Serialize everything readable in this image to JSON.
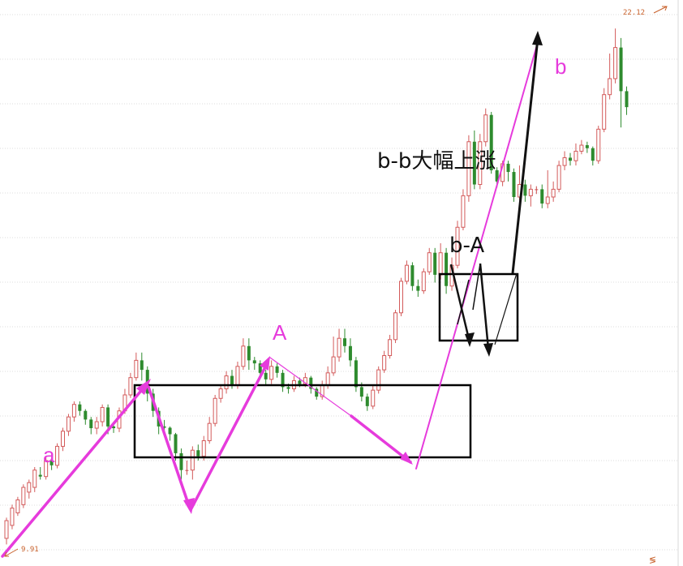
{
  "chart_data": {
    "type": "candlestick",
    "price_range": [
      9.5,
      22.6
    ],
    "price_high": "22.12",
    "price_low": "9.91",
    "grid": "horizontal dotted",
    "candles": [
      [
        10.14,
        10.55,
        10.0,
        10.62
      ],
      [
        10.44,
        10.84,
        10.35,
        10.92
      ],
      [
        10.73,
        11.03,
        10.66,
        11.1
      ],
      [
        10.92,
        11.32,
        10.84,
        11.39
      ],
      [
        11.21,
        11.43,
        11.06,
        11.5
      ],
      [
        11.32,
        11.72,
        11.21,
        11.79
      ],
      [
        11.61,
        11.57,
        11.5,
        11.79
      ],
      [
        11.57,
        11.94,
        11.5,
        12.01
      ],
      [
        11.94,
        11.83,
        11.72,
        12.01
      ],
      [
        11.83,
        12.27,
        11.76,
        12.34
      ],
      [
        12.27,
        12.62,
        12.16,
        12.7
      ],
      [
        12.62,
        12.95,
        12.51,
        13.02
      ],
      [
        12.95,
        13.24,
        12.84,
        13.31
      ],
      [
        13.24,
        13.09,
        12.98,
        13.31
      ],
      [
        13.09,
        12.89,
        12.77,
        13.13
      ],
      [
        12.89,
        12.69,
        12.55,
        12.95
      ],
      [
        12.69,
        12.84,
        12.55,
        12.95
      ],
      [
        12.84,
        13.17,
        12.73,
        13.24
      ],
      [
        13.17,
        12.73,
        12.55,
        13.24
      ],
      [
        12.73,
        12.69,
        12.58,
        12.84
      ],
      [
        12.69,
        13.09,
        12.6,
        13.17
      ],
      [
        13.09,
        13.46,
        13.02,
        13.6
      ],
      [
        13.46,
        13.86,
        13.39,
        13.97
      ],
      [
        13.86,
        14.26,
        13.79,
        14.44
      ],
      [
        14.26,
        14.04,
        13.79,
        14.44
      ],
      [
        14.04,
        13.49,
        13.31,
        14.12
      ],
      [
        13.49,
        13.09,
        12.95,
        13.6
      ],
      [
        13.09,
        12.73,
        12.55,
        13.17
      ],
      [
        12.73,
        12.7,
        12.55,
        12.88
      ],
      [
        12.7,
        12.55,
        12.4,
        12.73
      ],
      [
        12.55,
        12.11,
        11.94,
        12.58
      ],
      [
        12.11,
        11.72,
        11.5,
        12.22
      ],
      [
        11.72,
        11.72,
        11.61,
        11.94
      ],
      [
        11.72,
        12.18,
        11.5,
        12.27
      ],
      [
        12.18,
        12.04,
        11.94,
        12.31
      ],
      [
        12.04,
        12.4,
        11.94,
        12.51
      ],
      [
        12.4,
        12.8,
        12.33,
        12.95
      ],
      [
        12.8,
        13.38,
        12.73,
        13.46
      ],
      [
        13.38,
        13.6,
        13.28,
        13.68
      ],
      [
        13.6,
        13.9,
        13.49,
        14.01
      ],
      [
        13.9,
        13.68,
        13.6,
        14.04
      ],
      [
        13.68,
        14.12,
        13.6,
        14.23
      ],
      [
        14.12,
        14.59,
        14.04,
        14.77
      ],
      [
        14.59,
        14.26,
        14.04,
        14.77
      ],
      [
        14.26,
        14.19,
        14.04,
        14.34
      ],
      [
        14.19,
        13.97,
        13.86,
        14.26
      ],
      [
        13.97,
        13.82,
        13.68,
        14.04
      ],
      [
        13.82,
        14.12,
        13.71,
        14.26
      ],
      [
        14.12,
        13.97,
        13.86,
        14.19
      ],
      [
        13.97,
        13.64,
        13.53,
        14.04
      ],
      [
        13.64,
        13.6,
        13.49,
        13.72
      ],
      [
        13.6,
        13.79,
        13.53,
        13.9
      ],
      [
        13.79,
        13.71,
        13.64,
        13.86
      ],
      [
        13.71,
        13.86,
        13.64,
        13.97
      ],
      [
        13.86,
        13.6,
        13.49,
        13.9
      ],
      [
        13.6,
        13.42,
        13.35,
        13.64
      ],
      [
        13.42,
        13.68,
        13.35,
        13.79
      ],
      [
        13.68,
        13.97,
        13.6,
        14.12
      ],
      [
        13.97,
        14.34,
        13.9,
        14.81
      ],
      [
        14.34,
        14.77,
        14.23,
        14.99
      ],
      [
        14.77,
        14.59,
        14.44,
        14.99
      ],
      [
        14.59,
        14.26,
        14.12,
        14.77
      ],
      [
        14.26,
        13.64,
        13.53,
        14.34
      ],
      [
        13.64,
        13.42,
        13.31,
        13.75
      ],
      [
        13.42,
        13.2,
        13.09,
        13.49
      ],
      [
        13.2,
        13.57,
        13.13,
        13.68
      ],
      [
        13.57,
        14.04,
        13.49,
        14.12
      ],
      [
        14.04,
        14.37,
        13.97,
        14.48
      ],
      [
        14.37,
        14.74,
        14.3,
        14.85
      ],
      [
        14.74,
        15.36,
        14.66,
        15.43
      ],
      [
        15.36,
        16.09,
        15.28,
        16.17
      ],
      [
        16.09,
        16.46,
        16.02,
        16.57
      ],
      [
        16.46,
        15.98,
        15.87,
        16.53
      ],
      [
        15.98,
        15.87,
        15.73,
        16.13
      ],
      [
        15.87,
        16.31,
        15.8,
        16.39
      ],
      [
        16.31,
        16.75,
        16.24,
        16.86
      ],
      [
        16.75,
        16.24,
        16.06,
        16.86
      ],
      [
        16.24,
        16.75,
        16.13,
        16.97
      ],
      [
        16.75,
        15.98,
        15.8,
        16.86
      ],
      [
        15.98,
        16.46,
        15.87,
        16.64
      ],
      [
        16.46,
        17.34,
        16.39,
        17.49
      ],
      [
        17.34,
        18.07,
        17.27,
        18.22
      ],
      [
        18.07,
        19.32,
        17.93,
        19.47
      ],
      [
        19.32,
        18.33,
        18.22,
        19.58
      ],
      [
        18.33,
        19.32,
        18.22,
        19.5
      ],
      [
        19.32,
        19.94,
        19.21,
        20.09
      ],
      [
        19.94,
        18.66,
        18.58,
        20.01
      ],
      [
        18.66,
        18.4,
        18.26,
        18.73
      ],
      [
        18.4,
        18.81,
        18.29,
        18.88
      ],
      [
        18.81,
        18.62,
        18.4,
        18.88
      ],
      [
        18.62,
        18.04,
        17.93,
        18.7
      ],
      [
        18.04,
        18.33,
        17.97,
        18.77
      ],
      [
        18.33,
        18.07,
        17.93,
        18.44
      ],
      [
        18.07,
        18.22,
        17.82,
        18.33
      ],
      [
        18.22,
        18.22,
        18.11,
        18.29
      ],
      [
        18.22,
        17.89,
        17.78,
        18.33
      ],
      [
        17.89,
        18.04,
        17.78,
        18.66
      ],
      [
        18.04,
        18.22,
        17.93,
        18.4
      ],
      [
        18.22,
        18.77,
        18.15,
        18.88
      ],
      [
        18.77,
        18.95,
        18.66,
        19.1
      ],
      [
        18.95,
        18.88,
        18.77,
        19.06
      ],
      [
        18.88,
        19.1,
        18.77,
        19.28
      ],
      [
        19.1,
        19.24,
        19.03,
        19.36
      ],
      [
        19.24,
        19.17,
        19.06,
        19.32
      ],
      [
        19.17,
        18.88,
        18.77,
        19.21
      ],
      [
        18.88,
        19.61,
        18.81,
        19.69
      ],
      [
        19.61,
        20.41,
        19.54,
        20.56
      ],
      [
        20.41,
        20.78,
        20.3,
        21.36
      ],
      [
        20.78,
        21.5,
        20.67,
        21.94
      ],
      [
        21.5,
        20.49,
        19.65,
        21.72
      ],
      [
        20.49,
        20.12,
        19.94,
        20.6
      ]
    ],
    "wave_labels": [
      "a",
      "A",
      "b",
      "b-A",
      "b-b大幅上涨"
    ],
    "annotation_colors": {
      "pink": "#e63bdc",
      "black": "#111111"
    },
    "candle_colors": {
      "up": "#d35a5a",
      "down": "#2e8b2e",
      "flat": "#c84a4a"
    }
  }
}
